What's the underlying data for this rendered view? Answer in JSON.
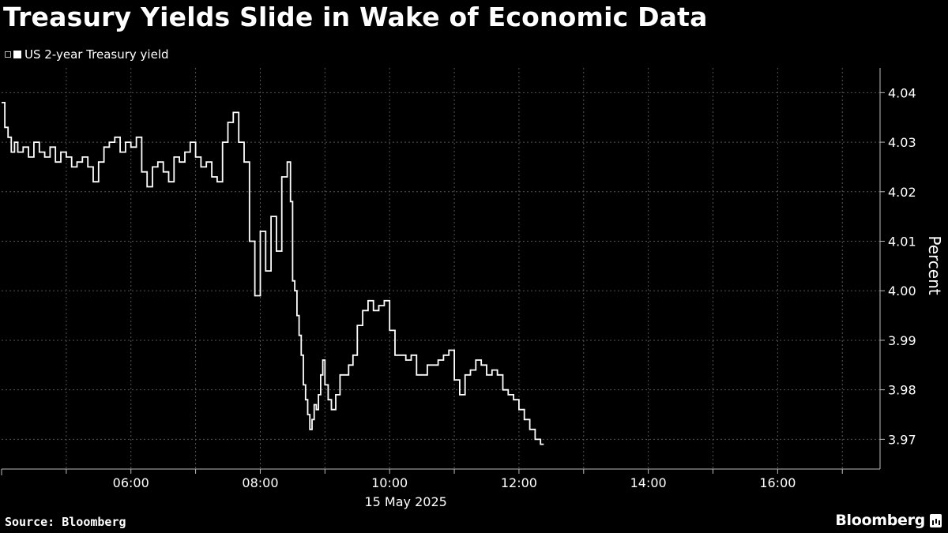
{
  "title": "Treasury Yields Slide in Wake of Economic Data",
  "legend": {
    "label": "US 2-year Treasury yield"
  },
  "footer": {
    "source": "Source: Bloomberg",
    "brand": "Bloomberg"
  },
  "colors": {
    "background": "#000000",
    "line": "#ffffff",
    "grid": "#555555",
    "text": "#ffffff"
  },
  "chart_data": {
    "type": "line",
    "title": "Treasury Yields Slide in Wake of Economic Data",
    "date_label": "15 May 2025",
    "ylabel": "Percent",
    "xlabel": "",
    "x_tick_labels": [
      "06:00",
      "08:00",
      "10:00",
      "12:00",
      "14:00",
      "16:00"
    ],
    "y_tick_labels": [
      "4.04",
      "4.03",
      "4.02",
      "4.01",
      "4.00",
      "3.99",
      "3.98",
      "3.97"
    ],
    "y_ticks": [
      4.04,
      4.03,
      4.02,
      4.01,
      4.0,
      3.99,
      3.98,
      3.97
    ],
    "ylim": [
      3.964,
      4.045
    ],
    "xlim": [
      "04:00",
      "17:35"
    ],
    "grid": true,
    "legend_position": "top-left",
    "series": [
      {
        "name": "US 2-year Treasury yield",
        "x": [
          "04:00",
          "04:03",
          "04:06",
          "04:09",
          "04:12",
          "04:15",
          "04:20",
          "04:25",
          "04:30",
          "04:35",
          "04:40",
          "04:45",
          "04:50",
          "04:55",
          "05:00",
          "05:05",
          "05:10",
          "05:15",
          "05:20",
          "05:25",
          "05:30",
          "05:35",
          "05:40",
          "05:45",
          "05:50",
          "05:55",
          "06:00",
          "06:05",
          "06:10",
          "06:15",
          "06:20",
          "06:25",
          "06:30",
          "06:35",
          "06:40",
          "06:45",
          "06:50",
          "06:55",
          "07:00",
          "07:05",
          "07:10",
          "07:15",
          "07:20",
          "07:25",
          "07:30",
          "07:35",
          "07:40",
          "07:45",
          "07:50",
          "07:55",
          "08:00",
          "08:05",
          "08:10",
          "08:15",
          "08:20",
          "08:25",
          "08:28",
          "08:30",
          "08:32",
          "08:34",
          "08:36",
          "08:38",
          "08:40",
          "08:42",
          "08:44",
          "08:46",
          "08:48",
          "08:50",
          "08:52",
          "08:54",
          "08:56",
          "08:58",
          "09:00",
          "09:03",
          "09:06",
          "09:10",
          "09:14",
          "09:18",
          "09:22",
          "09:26",
          "09:30",
          "09:35",
          "09:40",
          "09:45",
          "09:50",
          "09:55",
          "10:00",
          "10:05",
          "10:10",
          "10:15",
          "10:20",
          "10:25",
          "10:30",
          "10:35",
          "10:40",
          "10:45",
          "10:50",
          "10:55",
          "11:00",
          "11:05",
          "11:10",
          "11:15",
          "11:20",
          "11:25",
          "11:30",
          "11:35",
          "11:40",
          "11:45",
          "11:50",
          "11:55",
          "12:00",
          "12:05",
          "12:10",
          "12:15",
          "12:20",
          "12:23"
        ],
        "y": [
          4.038,
          4.033,
          4.031,
          4.028,
          4.03,
          4.028,
          4.029,
          4.027,
          4.03,
          4.028,
          4.027,
          4.029,
          4.026,
          4.028,
          4.027,
          4.025,
          4.026,
          4.027,
          4.025,
          4.022,
          4.026,
          4.029,
          4.03,
          4.031,
          4.028,
          4.03,
          4.029,
          4.031,
          4.024,
          4.021,
          4.025,
          4.026,
          4.024,
          4.022,
          4.027,
          4.026,
          4.028,
          4.03,
          4.027,
          4.025,
          4.026,
          4.023,
          4.022,
          4.03,
          4.034,
          4.036,
          4.03,
          4.026,
          4.01,
          3.999,
          4.012,
          4.004,
          4.015,
          4.008,
          4.023,
          4.026,
          4.018,
          4.002,
          4.0,
          3.995,
          3.991,
          3.987,
          3.981,
          3.978,
          3.975,
          3.972,
          3.974,
          3.977,
          3.976,
          3.979,
          3.983,
          3.986,
          3.981,
          3.978,
          3.976,
          3.979,
          3.983,
          3.983,
          3.985,
          3.987,
          3.993,
          3.996,
          3.998,
          3.996,
          3.997,
          3.998,
          3.992,
          3.987,
          3.987,
          3.986,
          3.987,
          3.983,
          3.983,
          3.985,
          3.985,
          3.986,
          3.987,
          3.988,
          3.982,
          3.979,
          3.983,
          3.984,
          3.986,
          3.985,
          3.983,
          3.984,
          3.983,
          3.98,
          3.979,
          3.978,
          3.976,
          3.974,
          3.972,
          3.97,
          3.969,
          3.969
        ]
      }
    ]
  }
}
